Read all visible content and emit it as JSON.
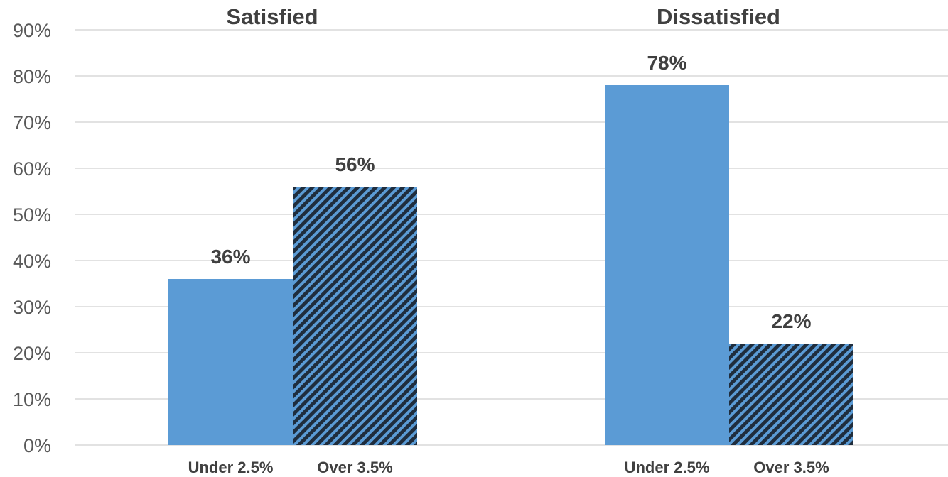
{
  "chart_data": {
    "type": "bar",
    "groups": [
      "Satisfied",
      "Dissatisfied"
    ],
    "categories": [
      "Under 2.5%",
      "Over 3.5%"
    ],
    "values": [
      [
        36,
        56
      ],
      [
        78,
        22
      ]
    ],
    "data_labels": [
      [
        "36%",
        "56%"
      ],
      [
        "78%",
        "22%"
      ]
    ],
    "ylim": [
      0,
      90
    ],
    "yticks": [
      "0%",
      "10%",
      "20%",
      "30%",
      "40%",
      "50%",
      "60%",
      "70%",
      "80%",
      "90%"
    ],
    "grid": true,
    "colors": {
      "solid": "#5b9bd5",
      "hatch_dark": "#1f2d3d",
      "hatch_light": "#5b9bd5"
    }
  }
}
